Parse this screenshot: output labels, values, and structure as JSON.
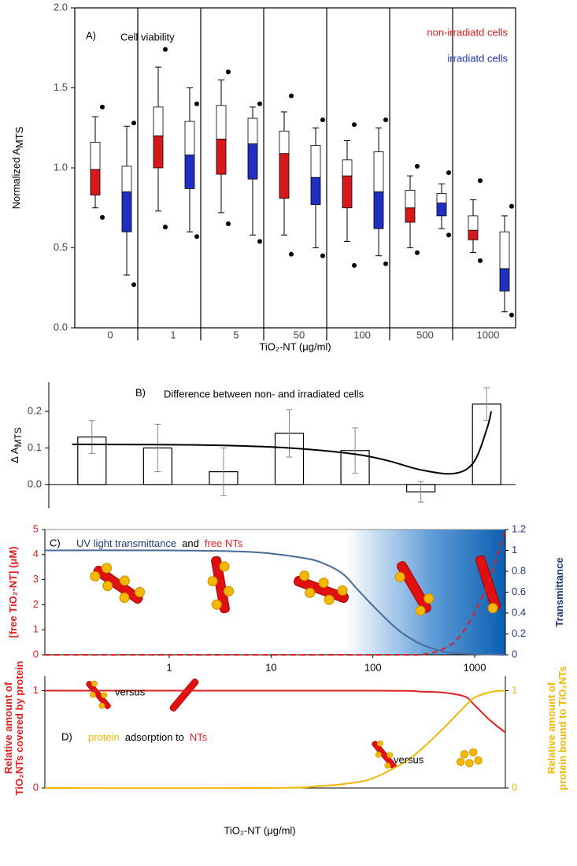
{
  "chart_data": [
    {
      "type": "box",
      "panel": "A)",
      "title": "Cell viability",
      "y_label": "Normalized A",
      "y_label_sub": "MTS",
      "x_label": "TiO₂-NT (μg/ml)",
      "categories": [
        "0",
        "1",
        "5",
        "50",
        "100",
        "500",
        "1000"
      ],
      "ylim": [
        0,
        2
      ],
      "yticks": [
        {
          "value": 0,
          "label": "0.0"
        },
        {
          "value": 0.5,
          "label": "0.5"
        },
        {
          "value": 1,
          "label": "1.0"
        },
        {
          "value": 1.5,
          "label": "1.5"
        },
        {
          "value": 2,
          "label": "2.0"
        }
      ],
      "series": [
        {
          "name": "non-irradiatd cells",
          "color": "#d7191c",
          "whisker_low": [
            0.75,
            0.73,
            0.72,
            0.58,
            0.54,
            0.5,
            0.47
          ],
          "q1": [
            0.83,
            1.0,
            0.96,
            0.81,
            0.75,
            0.66,
            0.55
          ],
          "median": [
            0.99,
            1.2,
            1.18,
            1.09,
            0.95,
            0.75,
            0.61
          ],
          "q3": [
            1.16,
            1.38,
            1.39,
            1.23,
            1.05,
            0.86,
            0.7
          ],
          "whisker_high": [
            1.32,
            1.63,
            1.55,
            1.35,
            1.17,
            0.95,
            0.8
          ],
          "outlier_low": [
            0.69,
            0.63,
            0.65,
            0.46,
            0.39,
            0.47,
            0.42
          ],
          "outlier_high": [
            1.38,
            1.74,
            1.6,
            1.45,
            1.27,
            1.01,
            0.92
          ]
        },
        {
          "name": "irradiatd cells",
          "color": "#1f2fbf",
          "whisker_low": [
            0.33,
            0.6,
            0.58,
            0.5,
            0.45,
            0.62,
            0.1
          ],
          "q1": [
            0.6,
            0.87,
            0.93,
            0.77,
            0.62,
            0.7,
            0.23
          ],
          "median": [
            0.85,
            1.08,
            1.15,
            0.94,
            0.85,
            0.78,
            0.37
          ],
          "q3": [
            1.01,
            1.29,
            1.31,
            1.14,
            1.1,
            0.84,
            0.6
          ],
          "whisker_high": [
            1.26,
            1.5,
            1.38,
            1.25,
            1.25,
            0.9,
            0.7
          ],
          "outlier_low": [
            0.27,
            0.57,
            0.54,
            0.45,
            0.4,
            0.58,
            0.08
          ],
          "outlier_high": [
            1.28,
            1.4,
            1.4,
            1.3,
            1.3,
            0.97,
            0.76
          ]
        }
      ]
    },
    {
      "type": "bar",
      "panel": "B)",
      "title": "Difference between non- and irradiated cells",
      "y_label": "Δ A",
      "y_label_sub": "MTS",
      "values": [
        0.13,
        0.1,
        0.035,
        0.14,
        0.093,
        -0.02,
        0.22
      ],
      "errors": [
        0.045,
        0.065,
        0.065,
        0.065,
        0.062,
        0.028,
        0.045
      ],
      "fit": {
        "x": [
          -0.3,
          1,
          2,
          3,
          4,
          4.5,
          5,
          5.5,
          5.8,
          6,
          6.07
        ],
        "values": [
          0.11,
          0.109,
          0.107,
          0.1,
          0.083,
          0.065,
          0.04,
          0.03,
          0.06,
          0.15,
          0.2
        ]
      },
      "ylim": [
        -0.065,
        0.28
      ],
      "yticks": [
        {
          "value": 0,
          "label": "0.0"
        },
        0.1,
        0.2
      ]
    },
    {
      "type": "line",
      "panel": "C)",
      "title": [
        "UV light transmittance",
        "and",
        "free NTs"
      ],
      "title_colors": [
        "#1f3b73",
        "#000000",
        "#e02020"
      ],
      "y_label": "[free TiO₂-NT] (μM)",
      "y2_label": "Transmittance",
      "xscale": "log",
      "xlim": [
        0.06,
        2000
      ],
      "xticks": [
        1,
        10,
        100,
        1000
      ],
      "ylim": [
        0,
        5
      ],
      "yticks": [
        0,
        1,
        2,
        3,
        4,
        5
      ],
      "y2lim": [
        0,
        1.2
      ],
      "y2ticks": [
        0,
        0.2,
        0.4,
        0.6,
        0.8,
        1,
        1.2
      ],
      "series": [
        {
          "color": "#4a6a9a",
          "dash": false,
          "axis": "y2",
          "x": [
            0.06,
            1,
            5,
            10,
            20,
            30,
            50,
            70,
            100,
            150,
            200,
            300,
            500,
            800,
            2000
          ],
          "values": [
            1,
            1,
            0.99,
            0.97,
            0.93,
            0.89,
            0.78,
            0.63,
            0.47,
            0.3,
            0.2,
            0.1,
            0.03,
            0.01,
            0
          ]
        },
        {
          "color": "#e02020",
          "dash": true,
          "axis": "y",
          "x": [
            0.06,
            100,
            300,
            500,
            700,
            1000,
            1400,
            2000
          ],
          "values": [
            0,
            0,
            0.02,
            0.25,
            0.7,
            1.7,
            3.0,
            5
          ]
        }
      ]
    },
    {
      "type": "line",
      "panel": "D)",
      "title": [
        "protein",
        "adsorption to",
        "NTs"
      ],
      "title_colors": [
        "#f2b705",
        "#000000",
        "#e02020"
      ],
      "annotations": [
        "versus",
        "versus"
      ],
      "y_label": [
        "Relative amount of",
        "TiO₂NTs covered by protein"
      ],
      "y2_label": [
        "Relative amount of",
        "protein bound to TiO₂NTs"
      ],
      "x_label": "TiO₂-NT (μg/ml)",
      "xscale": "log",
      "xlim": [
        0.06,
        2000
      ],
      "ylim": [
        0,
        1.15
      ],
      "yticks": [
        0,
        1
      ],
      "y2lim": [
        0,
        1.15
      ],
      "y2ticks": [
        0,
        1
      ],
      "series": [
        {
          "color": "#e02020",
          "dash": false,
          "axis": "y",
          "x": [
            0.06,
            100,
            300,
            500,
            800,
            1000,
            1400,
            2000
          ],
          "values": [
            1,
            1,
            0.99,
            0.98,
            0.94,
            0.85,
            0.7,
            0.57
          ]
        },
        {
          "color": "#f2b705",
          "dash": false,
          "axis": "y2",
          "x": [
            0.06,
            10,
            30,
            60,
            100,
            200,
            300,
            500,
            800,
            1000,
            1500,
            2000
          ],
          "values": [
            0,
            0,
            0.02,
            0.05,
            0.1,
            0.26,
            0.4,
            0.62,
            0.84,
            0.93,
            0.99,
            1
          ]
        }
      ]
    }
  ]
}
